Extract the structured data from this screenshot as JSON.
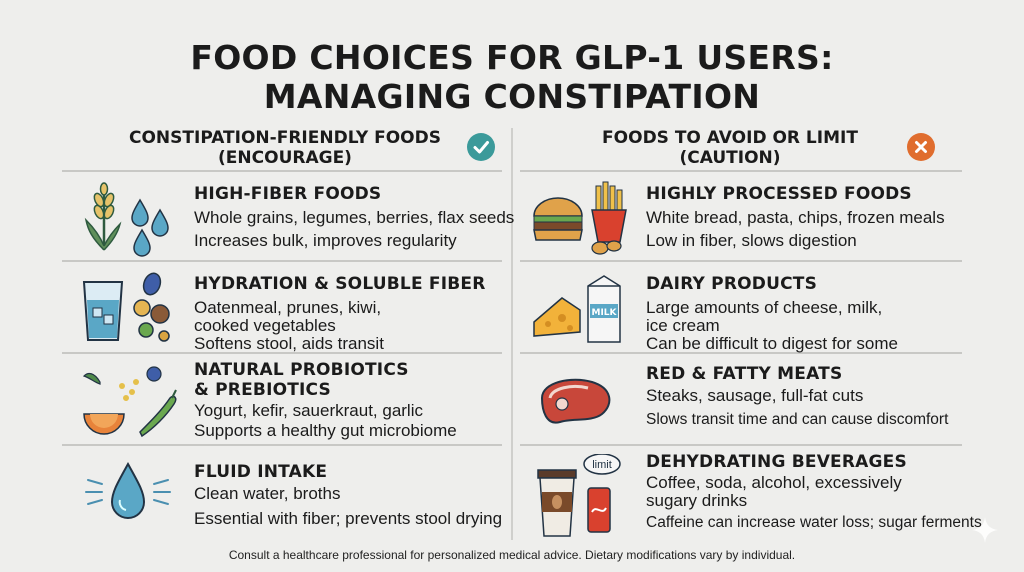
{
  "title": {
    "line1": "FOOD CHOICES FOR GLP-1 USERS:",
    "line2": "MANAGING CONSTIPATION"
  },
  "columns": {
    "encourage": {
      "line1": "CONSTIPATION-FRIENDLY FOODS",
      "line2": "(ENCOURAGE)",
      "badge_icon": "check-icon",
      "color": "#3b9a9a"
    },
    "avoid": {
      "line1": "FOODS TO AVOID OR LIMIT",
      "line2": "(CAUTION)",
      "badge_icon": "x-icon",
      "color": "#e06d2e"
    }
  },
  "encourage_items": [
    {
      "title": "HIGH-FIBER FOODS",
      "lines": [
        "Whole grains, legumes, berries, flax seeds",
        "Increases bulk, improves regularity"
      ],
      "icon": "wheat-and-water-drops-icon"
    },
    {
      "title": "HYDRATION & SOLUBLE FIBER",
      "lines": [
        "Oatenmeal, prunes, kiwi,",
        "cooked vegetables",
        "Softens stool, aids transit"
      ],
      "icon": "water-glass-and-fruits-icon"
    },
    {
      "title": "NATURAL PROBIOTICS",
      "title2": "& PREBIOTICS",
      "lines": [
        "Yogurt, kefir, sauerkraut, garlic",
        "Supports a healthy gut microbiome"
      ],
      "icon": "fruits-vegetables-icon"
    },
    {
      "title": "FLUID INTAKE",
      "lines": [
        "Clean water, broths",
        "Essential with fiber; prevents stool drying"
      ],
      "icon": "water-drop-icon"
    }
  ],
  "avoid_items": [
    {
      "title": "HIGHLY PROCESSED FOODS",
      "lines": [
        "White bread, pasta, chips, frozen meals",
        "Low in fiber, slows digestion"
      ],
      "icon": "burger-fries-icon"
    },
    {
      "title": "DAIRY PRODUCTS",
      "lines": [
        "Large amounts of cheese, milk,",
        "ice cream",
        "Can be difficult to digest for some"
      ],
      "icon": "cheese-milk-icon",
      "milk_label": "MILK"
    },
    {
      "title": "RED & FATTY MEATS",
      "lines": [
        "Steaks, sausage, full-fat cuts",
        "Slows transit time and can cause discomfort"
      ],
      "icon": "steak-icon"
    },
    {
      "title": "DEHYDRATING BEVERAGES",
      "lines": [
        "Coffee, soda, alcohol, excessively",
        "sugary drinks",
        "Caffeine can increase water loss; sugar ferments"
      ],
      "icon": "coffee-soda-icon",
      "bubble_label": "limit"
    }
  ],
  "footer": "Consult a healthcare professional for personalized medical advice. Dietary modifications vary by individual."
}
